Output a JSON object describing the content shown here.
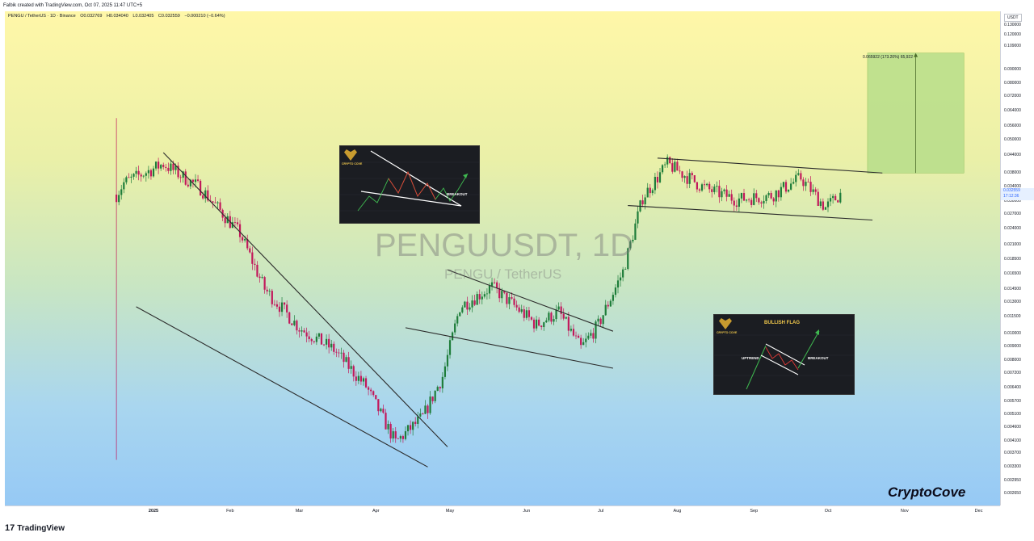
{
  "header": {
    "created_text": "Falbik created with TradingView.com, Oct 07, 2025 11:47 UTC+5"
  },
  "legend": {
    "symbol": "PENGU / TetherUS · 1D · Binance",
    "open": "O0.032769",
    "high": "H0.034040",
    "low": "L0.032405",
    "close": "C0.032559",
    "change": "−0.000210 (−0.64%)"
  },
  "watermark": {
    "title": "PENGUUSDT, 1D",
    "subtitle": "PENGU / TetherUS"
  },
  "brand": "CryptoCove",
  "footer": {
    "logo_text": "TradingView",
    "logo_mark": "17"
  },
  "measure": {
    "label": "0.065922 (173.20%) 65,922"
  },
  "insets": [
    {
      "label": "BREAKOUT",
      "logo": "CRYPTO COVE"
    },
    {
      "title": "BULLISH FLAG",
      "label_left": "UPTREND",
      "label_right": "BREAKOUT",
      "logo": "CRYPTO COVE"
    }
  ],
  "colors": {
    "up": "#1e7d3a",
    "down": "#c2185b",
    "trendline": "#2b2b2b",
    "target_box": "#b6dd8a",
    "price_tag": "#2962ff"
  },
  "chart_data": {
    "type": "candlestick",
    "title": "PENGUUSDT, 1D",
    "subtitle": "PENGU / TetherUS",
    "price_axis": {
      "unit": "USDT",
      "scale": "log",
      "range": [
        0.0025,
        0.15
      ],
      "ticks": [
        "0.130000",
        "0.120000",
        "0.109000",
        "0.090000",
        "0.080000",
        "0.072000",
        "0.064000",
        "0.056000",
        "0.050000",
        "0.044000",
        "0.038000",
        "0.034000",
        "0.030000",
        "0.027000",
        "0.024000",
        "0.021000",
        "0.018500",
        "0.016500",
        "0.014500",
        "0.013000",
        "0.011500",
        "0.010000",
        "0.009000",
        "0.008000",
        "0.007200",
        "0.006400",
        "0.005700",
        "0.005100",
        "0.004600",
        "0.004100",
        "0.003700",
        "0.003300",
        "0.002950",
        "0.002650"
      ],
      "last_price": "0.032559",
      "countdown": "17:12:36"
    },
    "time_axis": {
      "ticks": [
        "2025",
        "Feb",
        "Mar",
        "Apr",
        "May",
        "Jun",
        "Jul",
        "Aug",
        "Sep",
        "Oct",
        "Nov",
        "Dec"
      ]
    },
    "anchors": [
      [
        "2024-12-17",
        0.0035,
        0.06
      ],
      [
        "2024-12-20",
        0.028,
        0.042
      ],
      [
        "2025-01-05",
        0.038,
        0.044
      ],
      [
        "2025-01-20",
        0.032,
        0.035
      ],
      [
        "2025-02-05",
        0.022,
        0.024
      ],
      [
        "2025-02-15",
        0.014,
        0.015
      ],
      [
        "2025-03-01",
        0.01,
        0.011
      ],
      [
        "2025-03-15",
        0.0085,
        0.009
      ],
      [
        "2025-03-28",
        0.0063,
        0.0066
      ],
      [
        "2025-04-09",
        0.0039,
        0.0042
      ],
      [
        "2025-04-20",
        0.0048,
        0.0052
      ],
      [
        "2025-04-28",
        0.0065,
        0.0075
      ],
      [
        "2025-05-05",
        0.012,
        0.013
      ],
      [
        "2025-05-18",
        0.0145,
        0.015
      ],
      [
        "2025-06-05",
        0.0105,
        0.011
      ],
      [
        "2025-06-14",
        0.0118,
        0.0122
      ],
      [
        "2025-06-23",
        0.0087,
        0.009
      ],
      [
        "2025-06-30",
        0.0105,
        0.011
      ],
      [
        "2025-07-10",
        0.0165,
        0.017
      ],
      [
        "2025-07-18",
        0.03,
        0.032
      ],
      [
        "2025-07-28",
        0.04,
        0.042
      ],
      [
        "2025-08-12",
        0.033,
        0.034
      ],
      [
        "2025-08-25",
        0.03,
        0.031
      ],
      [
        "2025-09-08",
        0.031,
        0.032
      ],
      [
        "2025-09-20",
        0.036,
        0.037
      ],
      [
        "2025-09-30",
        0.028,
        0.029
      ],
      [
        "2025-10-07",
        0.0325,
        0.0326
      ]
    ],
    "trendlines": [
      {
        "name": "falling-wedge-upper",
        "from": [
          "2025-01-05",
          0.045
        ],
        "to": [
          "2025-04-30",
          0.0039
        ]
      },
      {
        "name": "falling-wedge-lower",
        "from": [
          "2024-12-25",
          0.0125
        ],
        "to": [
          "2025-04-22",
          0.0033
        ]
      },
      {
        "name": "descending-channel-upper",
        "from": [
          "2025-04-30",
          0.017
        ],
        "to": [
          "2025-07-06",
          0.0102
        ]
      },
      {
        "name": "descending-channel-lower",
        "from": [
          "2025-04-13",
          0.0105
        ],
        "to": [
          "2025-07-06",
          0.0075
        ]
      },
      {
        "name": "bullish-flag-upper",
        "from": [
          "2025-07-24",
          0.043
        ],
        "to": [
          "2025-10-23",
          0.038
        ]
      },
      {
        "name": "bullish-flag-lower",
        "from": [
          "2025-07-12",
          0.029
        ],
        "to": [
          "2025-10-19",
          0.0257
        ]
      }
    ],
    "target_range": {
      "from_date": "2025-10-17",
      "to_date": "2025-11-25",
      "low": 0.038,
      "high": 0.103
    }
  }
}
